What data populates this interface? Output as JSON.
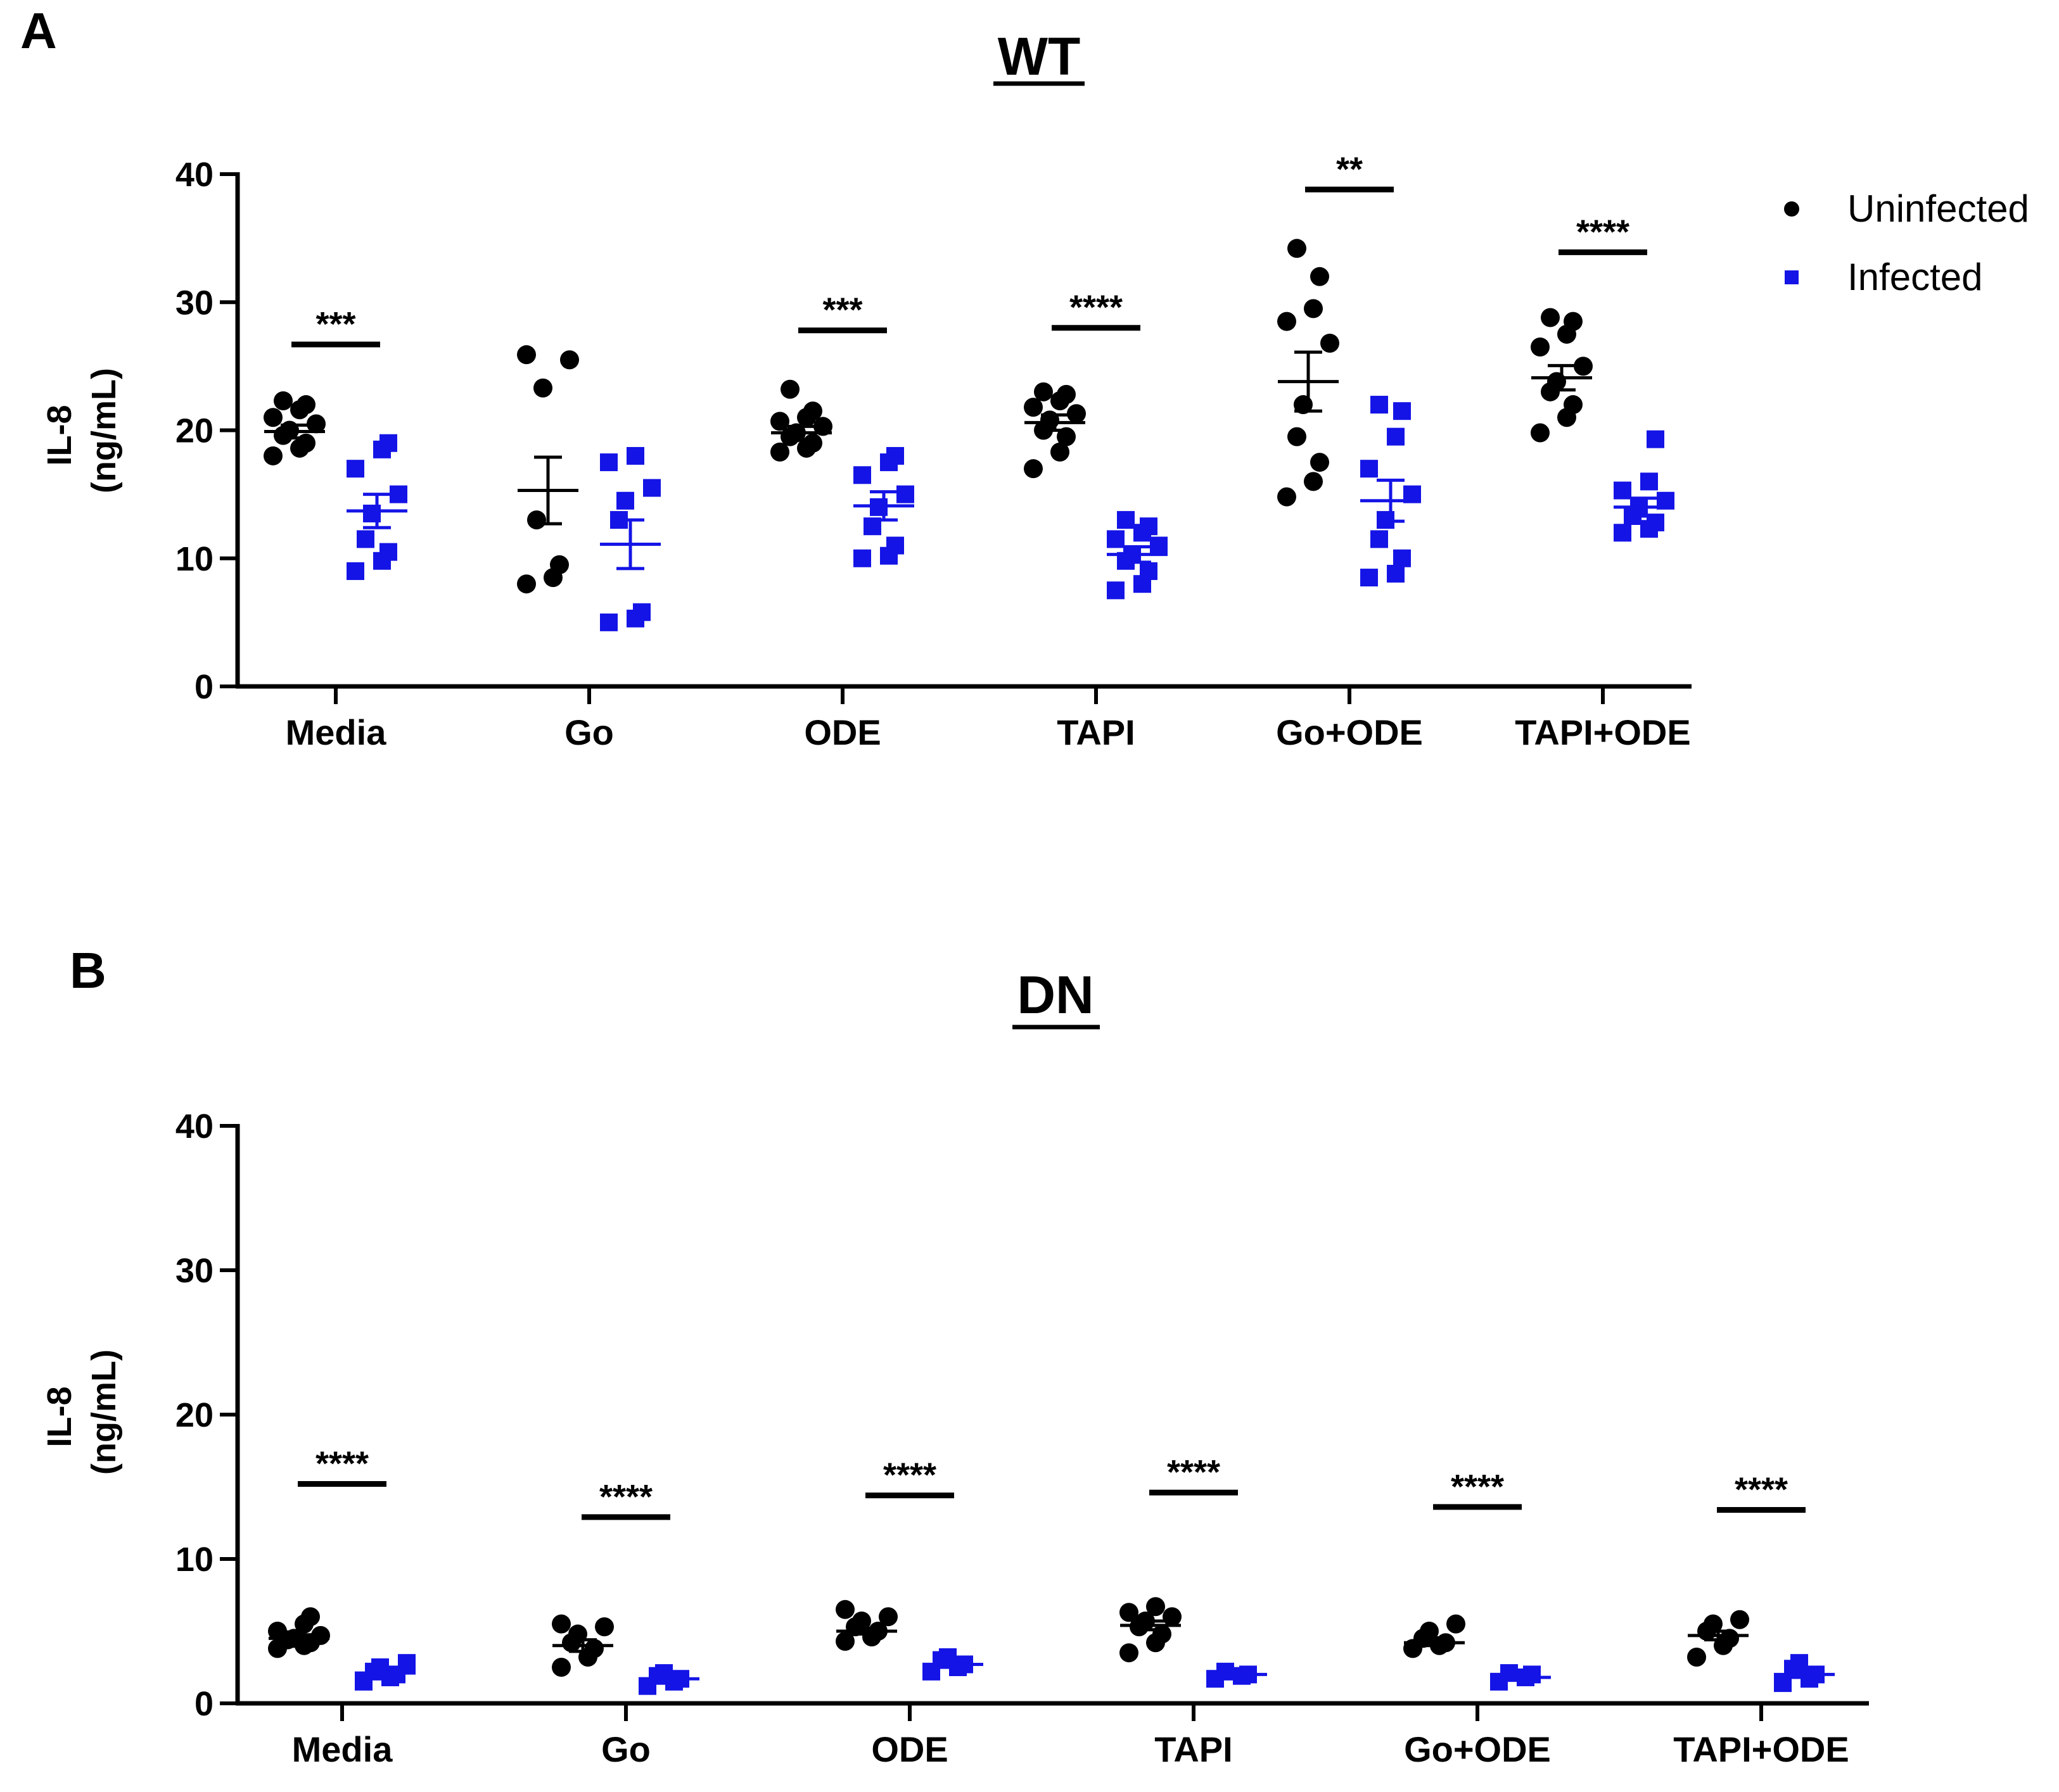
{
  "colors": {
    "uninfected": "#000000",
    "infected": "#1414e6"
  },
  "chart_data": [
    {
      "panel": "A",
      "type": "scatter",
      "title": "WT",
      "ylabel": [
        "IL-8",
        "(ng/mL)"
      ],
      "ylim": [
        0,
        40
      ],
      "yticks": [
        0,
        10,
        20,
        30,
        40
      ],
      "categories": [
        "Media",
        "Go",
        "ODE",
        "TAPI",
        "Go+ODE",
        "TAPI+ODE"
      ],
      "legend": [
        "Uninfected",
        "Infected"
      ],
      "series": [
        {
          "name": "Uninfected",
          "marker": "circle",
          "points": [
            [
              18.0,
              18.6,
              19.0,
              19.6,
              20.0,
              20.5,
              21.0,
              21.6,
              22.0,
              22.3
            ],
            [
              8.0,
              8.5,
              9.5,
              13.0,
              23.3,
              25.5,
              25.9
            ],
            [
              18.3,
              18.6,
              19.0,
              19.5,
              19.8,
              20.3,
              20.7,
              21.0,
              21.5,
              23.2
            ],
            [
              17.0,
              18.3,
              19.5,
              20.0,
              20.8,
              21.3,
              21.8,
              22.3,
              22.8,
              23.0
            ],
            [
              14.8,
              16.0,
              17.5,
              19.5,
              22.0,
              26.8,
              28.5,
              29.5,
              32.0,
              34.2
            ],
            [
              19.8,
              21.0,
              22.0,
              23.0,
              23.8,
              25.0,
              26.5,
              27.5,
              28.5,
              28.8
            ]
          ],
          "mean": [
            19.9,
            15.3,
            19.8,
            20.6,
            23.8,
            24.1
          ],
          "sem": [
            0.5,
            2.6,
            0.5,
            0.6,
            2.3,
            0.95
          ]
        },
        {
          "name": "Infected",
          "marker": "square",
          "points": [
            [
              9.0,
              9.8,
              10.5,
              11.5,
              13.5,
              15.0,
              17.0,
              18.5,
              19.0
            ],
            [
              5.0,
              5.3,
              5.8,
              13.0,
              14.5,
              15.5,
              17.5,
              18.0
            ],
            [
              10.0,
              10.2,
              11.0,
              12.5,
              14.0,
              15.0,
              16.5,
              17.5,
              18.0
            ],
            [
              7.5,
              8.0,
              9.0,
              9.8,
              10.3,
              11.0,
              11.5,
              12.0,
              12.5,
              13.0
            ],
            [
              8.5,
              8.8,
              10.0,
              11.5,
              13.0,
              15.0,
              17.0,
              19.5,
              21.5,
              22.0
            ],
            [
              12.0,
              12.3,
              12.8,
              13.3,
              14.0,
              14.5,
              15.3,
              16.0,
              19.3
            ]
          ],
          "mean": [
            13.7,
            11.1,
            14.1,
            10.3,
            14.5,
            14.0
          ],
          "sem": [
            1.3,
            1.9,
            1.1,
            0.6,
            1.6,
            0.7
          ]
        }
      ],
      "significance": [
        {
          "category": "Media",
          "label": "***",
          "y": 26.7
        },
        {
          "category": "ODE",
          "label": "***",
          "y": 27.8
        },
        {
          "category": "TAPI",
          "label": "****",
          "y": 28.0
        },
        {
          "category": "Go+ODE",
          "label": "**",
          "y": 38.8
        },
        {
          "category": "TAPI+ODE",
          "label": "****",
          "y": 33.9
        }
      ]
    },
    {
      "panel": "B",
      "type": "scatter",
      "title": "DN",
      "ylabel": [
        "IL-8",
        "(ng/mL)"
      ],
      "ylim": [
        0,
        40
      ],
      "yticks": [
        0,
        10,
        20,
        30,
        40
      ],
      "categories": [
        "Media",
        "Go",
        "ODE",
        "TAPI",
        "Go+ODE",
        "TAPI+ODE"
      ],
      "series": [
        {
          "name": "Uninfected",
          "marker": "circle",
          "points": [
            [
              3.8,
              4.0,
              4.2,
              4.4,
              4.5,
              4.7,
              5.0,
              5.5,
              6.0
            ],
            [
              2.5,
              3.2,
              3.8,
              4.2,
              4.8,
              5.3,
              5.5
            ],
            [
              4.3,
              4.6,
              5.0,
              5.3,
              5.7,
              6.0,
              6.5
            ],
            [
              3.5,
              4.2,
              4.8,
              5.3,
              5.7,
              6.0,
              6.3,
              6.7
            ],
            [
              3.8,
              4.0,
              4.2,
              4.5,
              5.0,
              5.5
            ],
            [
              3.2,
              4.0,
              4.5,
              5.0,
              5.5,
              5.8
            ]
          ],
          "mean": [
            4.5,
            4.0,
            5.0,
            5.4,
            4.2,
            4.7
          ],
          "sem": [
            0.25,
            0.4,
            0.2,
            0.3,
            0.2,
            0.3
          ]
        },
        {
          "name": "Infected",
          "marker": "square",
          "points": [
            [
              1.5,
              1.8,
              2.0,
              2.2,
              2.5,
              2.8
            ],
            [
              1.2,
              1.5,
              1.7,
              1.9,
              2.1
            ],
            [
              2.2,
              2.5,
              2.7,
              3.0,
              3.2
            ],
            [
              1.7,
              1.9,
              2.0,
              2.2
            ],
            [
              1.5,
              1.8,
              2.0,
              2.1
            ],
            [
              1.4,
              1.7,
              2.0,
              2.4,
              2.8
            ]
          ],
          "mean": [
            2.1,
            1.7,
            2.7,
            2.0,
            1.8,
            2.0
          ],
          "sem": [
            0.15,
            0.15,
            0.15,
            0.1,
            0.1,
            0.2
          ]
        }
      ],
      "significance": [
        {
          "category": "Media",
          "label": "****",
          "y": 15.2
        },
        {
          "category": "Go",
          "label": "****",
          "y": 12.9
        },
        {
          "category": "ODE",
          "label": "****",
          "y": 14.4
        },
        {
          "category": "TAPI",
          "label": "****",
          "y": 14.6
        },
        {
          "category": "Go+ODE",
          "label": "****",
          "y": 13.6
        },
        {
          "category": "TAPI+ODE",
          "label": "****",
          "y": 13.4
        }
      ]
    }
  ]
}
